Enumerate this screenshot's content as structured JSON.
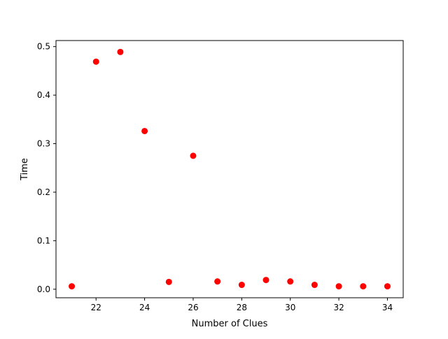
{
  "chart_data": {
    "type": "scatter",
    "title": "",
    "xlabel": "Number of Clues",
    "ylabel": "Time",
    "xlim": [
      20.35,
      34.65
    ],
    "ylim": [
      -0.0176,
      0.5125
    ],
    "grid": false,
    "x_ticks": [
      22,
      24,
      26,
      28,
      30,
      32,
      34
    ],
    "x_tick_labels": [
      "22",
      "24",
      "26",
      "28",
      "30",
      "32",
      "34"
    ],
    "y_ticks": [
      0.0,
      0.1,
      0.2,
      0.3,
      0.4,
      0.5
    ],
    "y_tick_labels": [
      "0.0",
      "0.1",
      "0.2",
      "0.3",
      "0.4",
      "0.5"
    ],
    "series": [
      {
        "color": "#ff0000",
        "marker": "circle",
        "x": [
          21,
          22,
          23,
          24,
          25,
          26,
          27,
          28,
          29,
          30,
          31,
          32,
          33,
          34
        ],
        "y": [
          0.006,
          0.469,
          0.489,
          0.326,
          0.015,
          0.275,
          0.016,
          0.009,
          0.019,
          0.016,
          0.009,
          0.006,
          0.006,
          0.006
        ]
      }
    ]
  }
}
